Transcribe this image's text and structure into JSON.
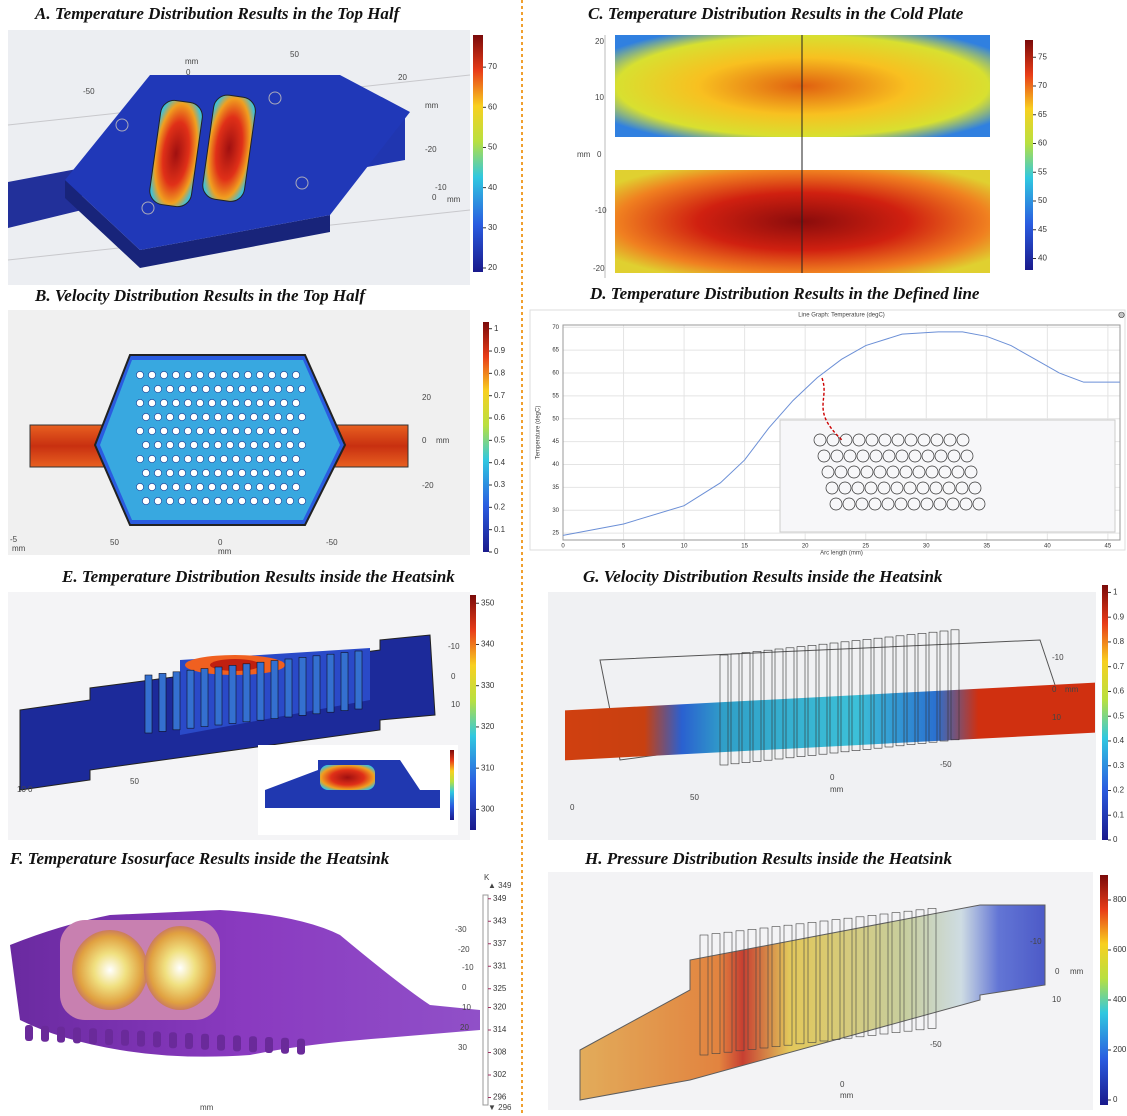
{
  "panels": [
    {
      "title": "A.  Temperature Distribution Results in the Top Half",
      "colorbar": {
        "lim": [
          19,
          78
        ],
        "ticks": [
          20,
          30,
          40,
          50,
          60,
          70
        ]
      },
      "labels": [
        "mm",
        "0",
        "50",
        "-50",
        "20",
        "mm",
        "-20",
        "-10",
        "0",
        "mm"
      ]
    },
    {
      "title": "B. Velocity Distribution Results in the Top Half",
      "colorbar": {
        "lim": [
          0,
          1.03
        ],
        "ticks": [
          0,
          0.1,
          0.2,
          0.3,
          0.4,
          0.5,
          0.6,
          0.7,
          0.8,
          0.9,
          1
        ]
      },
      "labels": [
        "20",
        "0",
        "mm",
        "-20",
        "-5",
        "mm",
        "50",
        "0",
        "-50",
        "mm"
      ]
    },
    {
      "title": "C.  Temperature Distribution Results in the Cold Plate",
      "colorbar": {
        "lim": [
          38,
          78
        ],
        "ticks": [
          40,
          45,
          50,
          55,
          60,
          65,
          70,
          75
        ]
      },
      "labels": [
        "20",
        "10",
        "mm",
        "0",
        "-10",
        "-20"
      ]
    },
    {
      "title": "D.  Temperature Distribution Results in the Defined line"
    },
    {
      "title": "E.  Temperature Distribution Results inside the Heatsink",
      "colorbar": {
        "lim": [
          295,
          352
        ],
        "ticks": [
          300,
          310,
          320,
          330,
          340,
          350
        ]
      },
      "labels": [
        "-10",
        "0",
        "10",
        "10",
        "0",
        "50"
      ]
    },
    {
      "title": "F. Temperature Isosurface Results inside the Heatsink",
      "colorbar": {
        "lim": [
          294,
          350
        ],
        "ticks": [
          296,
          302,
          308,
          314,
          320,
          325,
          331,
          337,
          343,
          349
        ]
      },
      "labels": [
        "K",
        "▲ 349",
        "▼ 296",
        "-30",
        "-20",
        "-10",
        "0",
        "10",
        "20",
        "30",
        "mm"
      ]
    },
    {
      "title": "G. Velocity Distribution Results inside the Heatsink",
      "colorbar": {
        "lim": [
          0,
          1.03
        ],
        "ticks": [
          0,
          0.1,
          0.2,
          0.3,
          0.4,
          0.5,
          0.6,
          0.7,
          0.8,
          0.9,
          1
        ]
      },
      "labels": [
        "-10",
        "0",
        "mm",
        "10",
        "-50",
        "0",
        "mm",
        "50",
        "0"
      ]
    },
    {
      "title": "H. Pressure Distribution Results inside the Heatsink",
      "colorbar": {
        "lim": [
          -20,
          900
        ],
        "ticks": [
          0,
          200,
          400,
          600,
          800
        ]
      },
      "labels": [
        "-10",
        "0",
        "mm",
        "10",
        "-50",
        "0",
        "mm"
      ]
    }
  ],
  "chart_data": {
    "type": "line",
    "title": "Line Graph: Temperature (degC)",
    "x_label": "Arc length (mm)",
    "y_label": "Temperature (degC)",
    "x": [
      0,
      5,
      10,
      13,
      15,
      17,
      19,
      21,
      23,
      25,
      28,
      31,
      33,
      35,
      37,
      39,
      41,
      43,
      45,
      46
    ],
    "series": [
      {
        "color": "#6b8fd6",
        "values": [
          24.5,
          27,
          31,
          36,
          41,
          48,
          54,
          59,
          63,
          66,
          68.5,
          69,
          69,
          68,
          66,
          63,
          60,
          58,
          58,
          58
        ]
      }
    ],
    "xlim": [
      0,
      46
    ],
    "ylim": [
      23.5,
      70.5
    ],
    "xticks": [
      0,
      5,
      10,
      15,
      20,
      25,
      30,
      35,
      40,
      45
    ],
    "yticks": [
      25,
      30,
      35,
      40,
      45,
      50,
      55,
      60,
      65,
      70
    ],
    "grid": true
  }
}
